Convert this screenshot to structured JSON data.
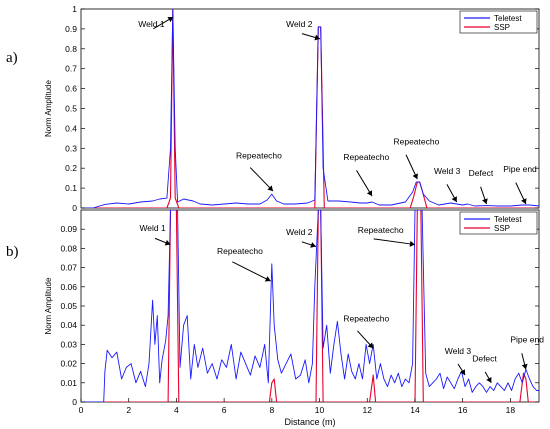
{
  "colors": {
    "teletest": "#1a1aff",
    "ssp": "#e8002b",
    "axis": "#000000",
    "bg": "#ffffff"
  },
  "chart_data": [
    {
      "panel": "a)",
      "type": "line",
      "title": "",
      "xlabel": "",
      "ylabel": "Norm Amplitude",
      "xlim": [
        0,
        19.2
      ],
      "ylim": [
        0,
        1
      ],
      "x_ticks": [],
      "y_ticks": [
        0,
        0.1,
        0.2,
        0.3,
        0.4,
        0.5,
        0.6,
        0.7,
        0.8,
        0.9,
        1
      ],
      "y_tick_labels": [
        "0",
        "0.1",
        "0.2",
        "0.3",
        "0.4",
        "0.5",
        "0.6",
        "0.7",
        "0.8",
        "0.9",
        "1"
      ],
      "grid": false,
      "legend": {
        "placement": "top-right",
        "entries": [
          "Teletest",
          "SSP"
        ]
      },
      "series": [
        {
          "name": "Teletest",
          "color_key": "teletest",
          "x": [
            0,
            0.5,
            1.0,
            1.5,
            2.0,
            2.5,
            3.0,
            3.3,
            3.6,
            3.75,
            3.85,
            3.95,
            4.05,
            4.3,
            4.7,
            5.0,
            5.5,
            6.0,
            6.5,
            7.0,
            7.5,
            7.8,
            8.0,
            8.2,
            8.5,
            9.0,
            9.5,
            9.8,
            9.95,
            10.05,
            10.15,
            10.35,
            10.8,
            11.3,
            11.7,
            12.0,
            12.2,
            12.5,
            13.0,
            13.6,
            13.9,
            14.05,
            14.2,
            14.35,
            14.6,
            15.0,
            15.5,
            16.0,
            16.2,
            16.5,
            17.0,
            17.5,
            18.0,
            18.5,
            18.8,
            19.2
          ],
          "y": [
            0,
            0,
            0.018,
            0.025,
            0.02,
            0.03,
            0.035,
            0.045,
            0.05,
            0.3,
            1.0,
            0.3,
            0.03,
            0.045,
            0.035,
            0.02,
            0.015,
            0.02,
            0.025,
            0.02,
            0.02,
            0.04,
            0.07,
            0.035,
            0.02,
            0.02,
            0.025,
            0.04,
            0.91,
            0.91,
            0.2,
            0.035,
            0.035,
            0.03,
            0.025,
            0.025,
            0.03,
            0.015,
            0.015,
            0.03,
            0.08,
            0.13,
            0.13,
            0.07,
            0.035,
            0.015,
            0.025,
            0.015,
            0.02,
            0.01,
            0.012,
            0.01,
            0.01,
            0.015,
            0.015,
            0.01
          ]
        },
        {
          "name": "SSP",
          "color_key": "ssp",
          "x": [
            0,
            3.6,
            3.75,
            3.85,
            3.95,
            4.1,
            9.8,
            9.95,
            10.05,
            10.2,
            13.8,
            13.95,
            14.1,
            14.2,
            14.3,
            14.5,
            19.2
          ],
          "y": [
            0,
            0,
            0.05,
            1.0,
            0.05,
            0,
            0,
            0.91,
            0.91,
            0,
            0,
            0.06,
            0.13,
            0.13,
            0.09,
            0,
            0
          ]
        }
      ],
      "annotations": [
        {
          "text": "Weld 1",
          "x": 3.87,
          "y": 0.96,
          "tx": 2.4,
          "ty": 0.91
        },
        {
          "text": "Weld 2",
          "x": 10.02,
          "y": 0.85,
          "tx": 8.6,
          "ty": 0.91
        },
        {
          "text": "Repeatecho",
          "x": 8.05,
          "y": 0.085,
          "tx": 6.5,
          "ty": 0.25
        },
        {
          "text": "Repeatecho",
          "x": 12.2,
          "y": 0.06,
          "tx": 11.0,
          "ty": 0.24
        },
        {
          "text": "Repeatecho",
          "x": 14.1,
          "y": 0.145,
          "tx": 13.1,
          "ty": 0.32
        },
        {
          "text": "Weld 3",
          "x": 15.75,
          "y": 0.03,
          "tx": 14.8,
          "ty": 0.17
        },
        {
          "text": "Defect",
          "x": 17.0,
          "y": 0.02,
          "tx": 16.25,
          "ty": 0.16
        },
        {
          "text": "Pipe end",
          "x": 18.65,
          "y": 0.02,
          "tx": 17.7,
          "ty": 0.18
        }
      ]
    },
    {
      "panel": "b)",
      "type": "line",
      "title": "",
      "xlabel": "Distance (m)",
      "ylabel": "Norm Amplitude",
      "xlim": [
        0,
        19.2
      ],
      "ylim": [
        0,
        0.1
      ],
      "x_ticks": [
        0,
        2,
        4,
        6,
        8,
        10,
        12,
        14,
        16,
        18
      ],
      "x_tick_labels": [
        "0",
        "2",
        "4",
        "6",
        "8",
        "10",
        "12",
        "14",
        "16",
        "18"
      ],
      "y_ticks": [
        0,
        0.01,
        0.02,
        0.03,
        0.04,
        0.05,
        0.06,
        0.07,
        0.08,
        0.09
      ],
      "y_tick_labels": [
        "0",
        "0.01",
        "0.02",
        "0.03",
        "0.04",
        "0.05",
        "0.06",
        "0.07",
        "0.08",
        "0.09"
      ],
      "grid": false,
      "legend": {
        "placement": "top-right",
        "entries": [
          "Teletest",
          "SSP"
        ]
      },
      "series": [
        {
          "name": "Teletest",
          "color_key": "teletest",
          "x": [
            0,
            0.95,
            1.0,
            1.1,
            1.3,
            1.5,
            1.7,
            1.9,
            2.1,
            2.3,
            2.5,
            2.7,
            2.85,
            3.0,
            3.1,
            3.2,
            3.3,
            3.4,
            3.55,
            3.65,
            3.75,
            3.85,
            3.95,
            4.05,
            4.15,
            4.3,
            4.45,
            4.6,
            4.75,
            4.9,
            5.1,
            5.3,
            5.5,
            5.7,
            5.9,
            6.1,
            6.3,
            6.5,
            6.7,
            6.9,
            7.1,
            7.3,
            7.5,
            7.7,
            7.85,
            8.0,
            8.1,
            8.25,
            8.4,
            8.6,
            8.8,
            9.0,
            9.2,
            9.4,
            9.55,
            9.7,
            9.8,
            9.95,
            10.05,
            10.15,
            10.3,
            10.45,
            10.6,
            10.75,
            10.9,
            11.05,
            11.2,
            11.35,
            11.5,
            11.65,
            11.8,
            11.95,
            12.1,
            12.25,
            12.4,
            12.55,
            12.7,
            12.85,
            13.0,
            13.15,
            13.3,
            13.45,
            13.6,
            13.75,
            13.9,
            14.0,
            14.1,
            14.2,
            14.3,
            14.45,
            14.6,
            14.75,
            14.9,
            15.05,
            15.2,
            15.35,
            15.5,
            15.65,
            15.8,
            15.95,
            16.1,
            16.25,
            16.4,
            16.55,
            16.7,
            16.85,
            17.0,
            17.15,
            17.3,
            17.45,
            17.6,
            17.75,
            17.9,
            18.05,
            18.2,
            18.35,
            18.5,
            18.65,
            18.8,
            18.95,
            19.1,
            19.2
          ],
          "y": [
            0,
            0,
            0.016,
            0.027,
            0.023,
            0.026,
            0.012,
            0.018,
            0.02,
            0.01,
            0.016,
            0.008,
            0.02,
            0.053,
            0.03,
            0.045,
            0.01,
            0.022,
            0.032,
            0.045,
            0.1,
            0.1,
            0.1,
            0.1,
            0.018,
            0.04,
            0.045,
            0.012,
            0.03,
            0.018,
            0.028,
            0.015,
            0.02,
            0.012,
            0.022,
            0.018,
            0.03,
            0.012,
            0.026,
            0.02,
            0.014,
            0.024,
            0.018,
            0.03,
            0.01,
            0.072,
            0.04,
            0.022,
            0.015,
            0.02,
            0.025,
            0.012,
            0.014,
            0.022,
            0.01,
            0.02,
            0.06,
            0.1,
            0.1,
            0.028,
            0.04,
            0.015,
            0.03,
            0.042,
            0.025,
            0.012,
            0.025,
            0.016,
            0.012,
            0.02,
            0.012,
            0.03,
            0.02,
            0.03,
            0.012,
            0.02,
            0.012,
            0.008,
            0.014,
            0.01,
            0.015,
            0.008,
            0.012,
            0.01,
            0.02,
            0.1,
            0.1,
            0.1,
            0.1,
            0.015,
            0.008,
            0.01,
            0.012,
            0.015,
            0.007,
            0.013,
            0.01,
            0.007,
            0.012,
            0.016,
            0.008,
            0.012,
            0.005,
            0.008,
            0.01,
            0.008,
            0.005,
            0.008,
            0.006,
            0.01,
            0.008,
            0.006,
            0.01,
            0.006,
            0.012,
            0.015,
            0.01,
            0.017,
            0.012,
            0.008,
            0.006,
            0.006
          ]
        },
        {
          "name": "SSP",
          "color_key": "ssp",
          "x": [
            0,
            3.65,
            3.75,
            3.85,
            4.0,
            4.1,
            7.9,
            8.0,
            8.1,
            8.2,
            9.85,
            9.95,
            10.05,
            10.15,
            12.1,
            12.25,
            12.35,
            14.0,
            14.1,
            14.25,
            14.35,
            18.4,
            18.55,
            18.65,
            18.75,
            19.2
          ],
          "y": [
            0,
            0,
            0.1,
            0.1,
            0.1,
            0,
            0,
            0.01,
            0.012,
            0,
            0,
            0.1,
            0.1,
            0,
            0,
            0.014,
            0,
            0,
            0.1,
            0.1,
            0,
            0,
            0.015,
            0.012,
            0,
            0
          ]
        }
      ],
      "annotations": [
        {
          "text": "Weld 1",
          "x": 3.75,
          "y": 0.082,
          "tx": 2.45,
          "ty": 0.089
        },
        {
          "text": "Weld 2",
          "x": 9.85,
          "y": 0.081,
          "tx": 8.6,
          "ty": 0.087
        },
        {
          "text": "Repeatecho",
          "x": 7.95,
          "y": 0.063,
          "tx": 5.7,
          "ty": 0.077
        },
        {
          "text": "Repeatecho",
          "x": 14.0,
          "y": 0.082,
          "tx": 11.6,
          "ty": 0.088
        },
        {
          "text": "Repeatecho",
          "x": 12.25,
          "y": 0.028,
          "tx": 11.0,
          "ty": 0.042
        },
        {
          "text": "Weld 3",
          "x": 16.1,
          "y": 0.014,
          "tx": 15.25,
          "ty": 0.025
        },
        {
          "text": "Defect",
          "x": 17.2,
          "y": 0.01,
          "tx": 16.4,
          "ty": 0.021
        },
        {
          "text": "Pipe end",
          "x": 18.65,
          "y": 0.017,
          "tx": 18.0,
          "ty": 0.031
        }
      ]
    }
  ]
}
